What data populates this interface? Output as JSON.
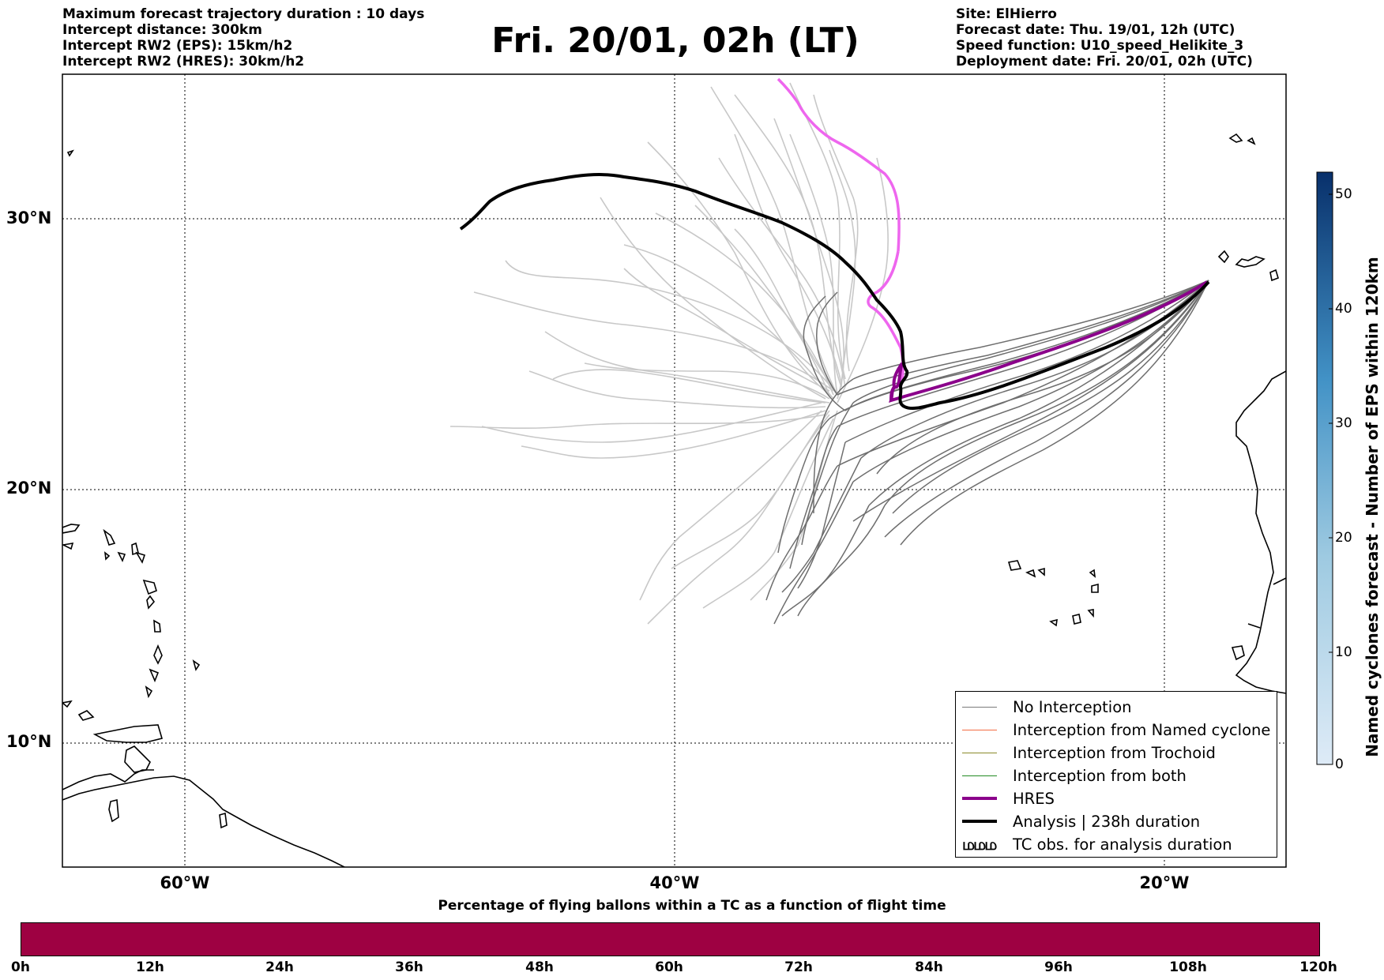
{
  "header": {
    "left_lines": [
      "Maximum forecast trajectory duration : 10 days",
      "Intercept distance: 300km",
      "Intercept RW2 (EPS):  15km/h2",
      "Intercept RW2 (HRES): 30km/h2"
    ],
    "title": "Fri. 20/01, 02h (LT)",
    "right_lines": [
      "Site: ElHierro",
      "Forecast date: Thu. 19/01, 12h (UTC)",
      "Speed function: U10_speed_Helikite_3",
      "Deployment date: Fri. 20/01, 02h (UTC)"
    ]
  },
  "map": {
    "lat_labels": [
      "30°N",
      "20°N",
      "10°N"
    ],
    "lon_labels": [
      "60°W",
      "40°W",
      "20°W"
    ],
    "colors": {
      "no_interception": "#707070",
      "ensemble_light": "#c8c8c8",
      "hres": "#8b008b",
      "hres_early": "#ee66ee",
      "analysis": "#000000"
    }
  },
  "legend": {
    "items": [
      {
        "label": "No Interception",
        "color": "#7a7a7a"
      },
      {
        "label": "Interception from Named cyclone",
        "color": "#f46d43"
      },
      {
        "label": "Interception from Trochoid",
        "color": "#8a8a2a"
      },
      {
        "label": "Interception from both",
        "color": "#228b22"
      },
      {
        "label": "HRES",
        "color": "#8b008b"
      },
      {
        "label": "Analysis | 238h duration",
        "color": "#000000"
      },
      {
        "label": "TC obs. for analysis duration",
        "color": "#000000",
        "icon": "tc-symbol-icon",
        "symbol": "மமம"
      }
    ]
  },
  "colorbar_right": {
    "label": "Named cyclones forecast - Number of EPS within 120km",
    "ticks": [
      "50",
      "40",
      "30",
      "20",
      "10",
      "0"
    ],
    "range": [
      0,
      52
    ],
    "color_low": "#deebf7",
    "color_high": "#08306b"
  },
  "colorbar_bottom": {
    "title": "Percentage of flying ballons within a TC as a function of flight time",
    "ticks": [
      "0h",
      "12h",
      "24h",
      "36h",
      "48h",
      "60h",
      "72h",
      "84h",
      "96h",
      "108h",
      "120h"
    ],
    "color": "#9e0142"
  }
}
